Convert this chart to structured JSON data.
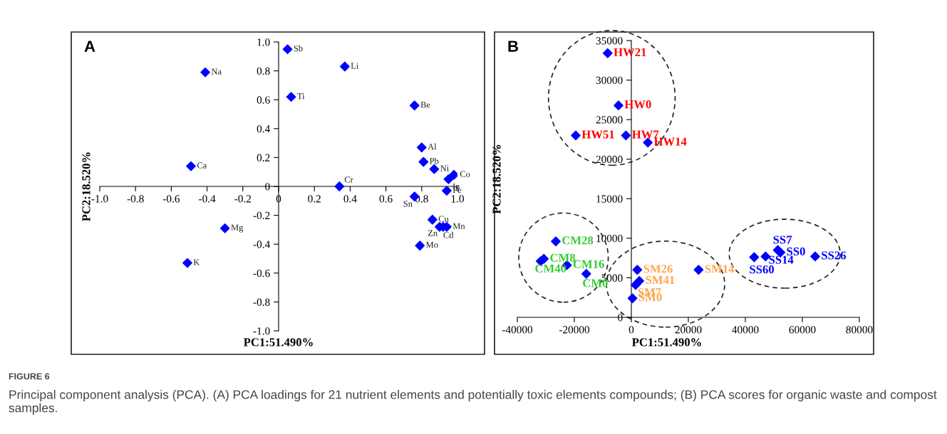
{
  "chart_data": [
    {
      "type": "scatter",
      "title": "A",
      "xlabel": "PC1:51.490%",
      "ylabel": "PC2:18.520%",
      "xlim": [
        -1.0,
        1.0
      ],
      "ylim": [
        -1.0,
        1.0
      ],
      "xticks": [
        {
          "value": -1.0,
          "label": "-1.0"
        },
        {
          "value": -0.8,
          "label": "-0.8"
        },
        {
          "value": -0.6,
          "label": "-0.6"
        },
        {
          "value": -0.4,
          "label": "-0.4"
        },
        {
          "value": -0.2,
          "label": "-0.2"
        },
        {
          "value": 0,
          "label": "0"
        },
        {
          "value": 0.2,
          "label": "0.2"
        },
        {
          "value": 0.4,
          "label": "0.4"
        },
        {
          "value": 0.6,
          "label": "0.6"
        },
        {
          "value": 0.8,
          "label": "0.8"
        },
        {
          "value": 1.0,
          "label": "1.0"
        }
      ],
      "yticks": [
        {
          "value": -1.0,
          "label": "-1.0"
        },
        {
          "value": -0.8,
          "label": "-0.8"
        },
        {
          "value": -0.6,
          "label": "-0.6"
        },
        {
          "value": -0.4,
          "label": "-0.4"
        },
        {
          "value": -0.2,
          "label": "-0.2"
        },
        {
          "value": 0,
          "label": "0"
        },
        {
          "value": 0.2,
          "label": "0.2"
        },
        {
          "value": 0.4,
          "label": "0.4"
        },
        {
          "value": 0.6,
          "label": "0.6"
        },
        {
          "value": 0.8,
          "label": "0.8"
        },
        {
          "value": 1.0,
          "label": "1.0"
        }
      ],
      "marker": "diamond",
      "grid": false,
      "series": [
        {
          "color": "#0000ff",
          "x": [
            0.05,
            -0.41,
            0.07,
            0.37,
            0.76,
            0.8,
            0.81,
            0.87,
            0.98,
            0.95,
            0.34,
            0.94,
            0.76,
            0.86,
            0.9,
            0.92,
            0.94,
            0.79,
            -0.49,
            -0.3,
            -0.51
          ],
          "values": [
            0.95,
            0.79,
            0.62,
            0.83,
            0.56,
            0.27,
            0.17,
            0.12,
            0.08,
            0.05,
            0.0,
            -0.03,
            -0.07,
            -0.23,
            -0.28,
            -0.28,
            -0.28,
            -0.41,
            0.14,
            -0.29,
            -0.53
          ],
          "value_labels": [
            "Sb",
            "Na",
            "Ti",
            "Li",
            "Be",
            "Al",
            "Pb",
            "Ni",
            "Co",
            "In",
            "Cr",
            "Fe",
            "Sn",
            "Cu",
            "Zn",
            "Cd",
            "Mn",
            "Mo",
            "Ca",
            "Mg",
            "K"
          ]
        }
      ],
      "annotations": [
        "FIGURE 6",
        "Principal component analysis (PCA). (A) PCA loadings for 21 nutrient elements and potentially toxic elements compounds; (B) PCA scores for organic waste and compost samples."
      ]
    },
    {
      "type": "scatter",
      "title": "B",
      "xlabel": "PC1:51.490%",
      "ylabel": "PC2:18.520%",
      "xlim": [
        -40000,
        80000
      ],
      "ylim": [
        0,
        35000
      ],
      "xticks": [
        -40000,
        -20000,
        0,
        20000,
        40000,
        60000,
        80000
      ],
      "yticks": [
        0,
        5000,
        10000,
        15000,
        20000,
        25000,
        30000,
        35000
      ],
      "marker": "diamond",
      "grid": false,
      "series": [
        {
          "color": "#0000ff",
          "x": [
            -8300,
            -4500,
            -19500,
            -1900,
            5800
          ],
          "values": [
            33400,
            26800,
            23000,
            23000,
            22100
          ],
          "value_labels": [
            "HW21",
            "HW0",
            "HW51",
            "HW7",
            "HW14"
          ]
        },
        {
          "color": "#0000ff",
          "x": [
            -26500,
            -30700,
            -31800,
            -22600,
            -15800
          ],
          "values": [
            9600,
            7400,
            7100,
            6600,
            5500
          ],
          "value_labels": [
            "CM28",
            "CM8",
            "CM40",
            "CM16",
            "CM0"
          ]
        },
        {
          "color": "#0000ff",
          "x": [
            2100,
            23600,
            2800,
            1500,
            400
          ],
          "values": [
            6000,
            6000,
            4600,
            4100,
            2400
          ],
          "value_labels": [
            "SM26",
            "SM14",
            "SM41",
            "SM7",
            "SM0"
          ]
        },
        {
          "color": "#0000ff",
          "x": [
            51400,
            52300,
            47100,
            43100,
            64500
          ],
          "values": [
            8500,
            8200,
            7700,
            7600,
            7700
          ],
          "value_labels": [
            "SS7",
            "SS0",
            "SS14",
            "SS60",
            "SS26"
          ]
        }
      ]
    }
  ]
}
